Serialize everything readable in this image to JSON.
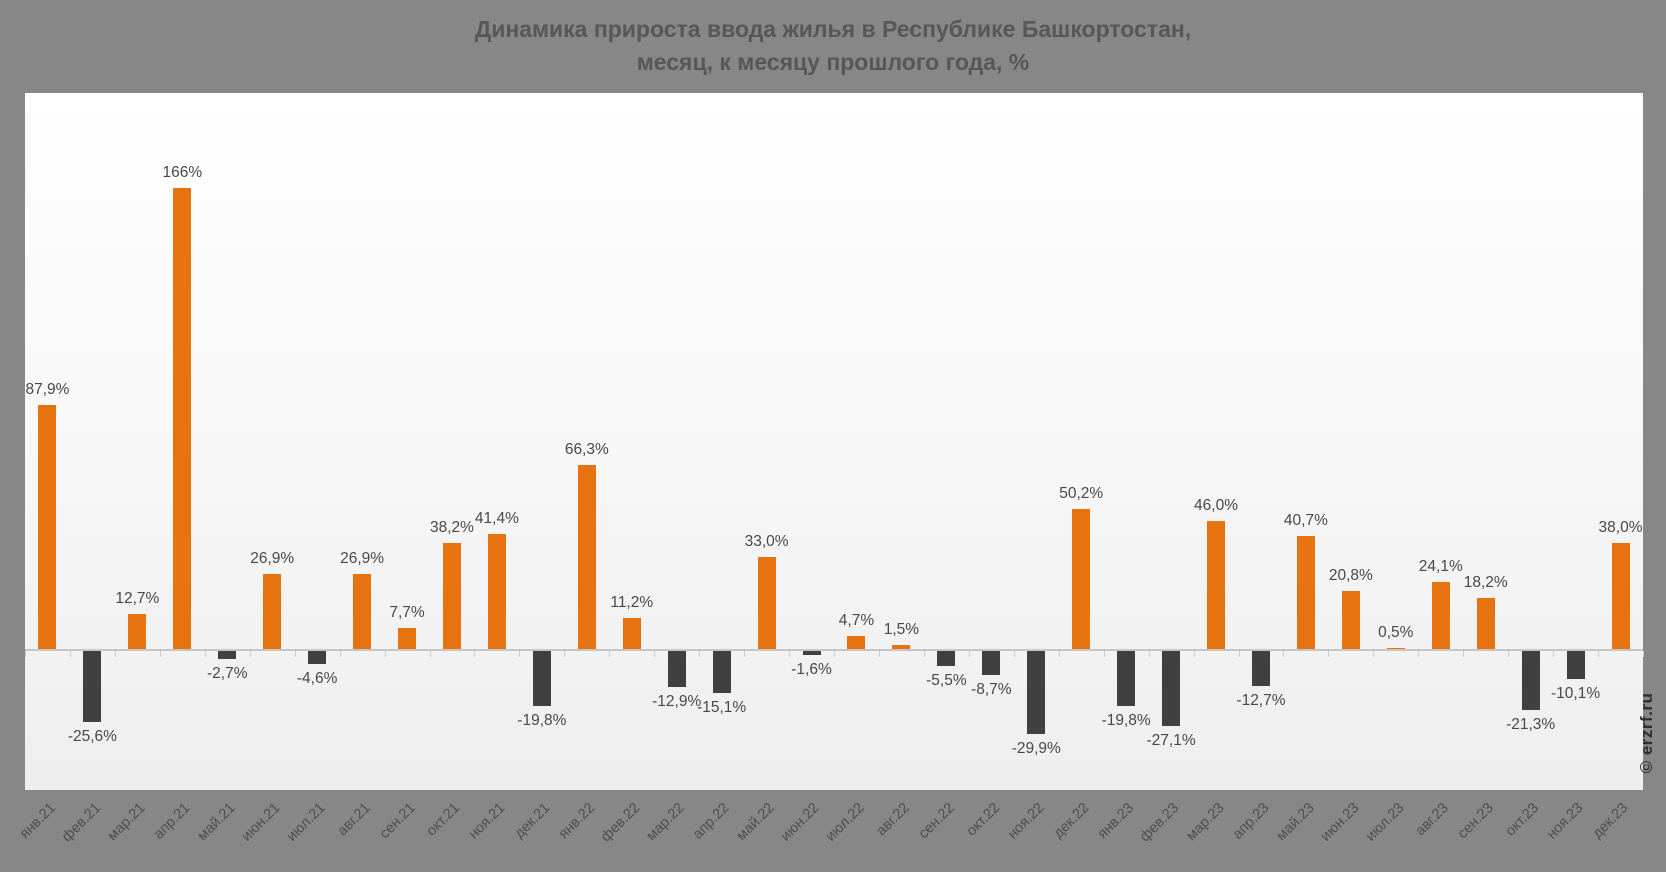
{
  "title": {
    "line1": "Динамика прироста ввода жилья в Республике Башкортостан,",
    "line2": "месяц, к месяцу прошлого года, %"
  },
  "watermark": "© erzrf.ru",
  "colors": {
    "bar_positive": "#e6730f",
    "bar_negative": "#404040",
    "page_background": "#878787",
    "axis_line": "#c5c5c5",
    "label_text": "#484848"
  },
  "chart_data": {
    "type": "bar",
    "title": "Динамика прироста ввода жилья в Республике Башкортостан, месяц, к месяцу прошлого года, %",
    "xlabel": "",
    "ylabel": "",
    "ylim": [
      -50,
      200
    ],
    "grid": false,
    "legend_position": "none",
    "categories": [
      "янв.21",
      "фев.21",
      "мар.21",
      "апр.21",
      "май.21",
      "июн.21",
      "июл.21",
      "авг.21",
      "сен.21",
      "окт.21",
      "ноя.21",
      "дек.21",
      "янв.22",
      "фев.22",
      "мар.22",
      "апр.22",
      "май.22",
      "июн.22",
      "июл.22",
      "авг.22",
      "сен.22",
      "окт.22",
      "ноя.22",
      "дек.22",
      "янв.23",
      "фев.23",
      "мар.23",
      "апр.23",
      "май.23",
      "июн.23",
      "июл.23",
      "авг.23",
      "сен.23",
      "окт.23",
      "ноя.23",
      "дек.23"
    ],
    "values": [
      87.9,
      -25.6,
      12.7,
      166,
      -2.7,
      26.9,
      -4.6,
      26.9,
      7.7,
      38.2,
      41.4,
      -19.8,
      66.3,
      11.2,
      -12.9,
      -15.1,
      33.0,
      -1.6,
      4.7,
      1.5,
      -5.5,
      -8.7,
      -29.9,
      50.2,
      -19.8,
      -27.1,
      46.0,
      -12.7,
      40.7,
      20.8,
      0.5,
      24.1,
      18.2,
      -21.3,
      -10.1,
      38.0
    ],
    "value_labels": [
      "87,9%",
      "-25,6%",
      "12,7%",
      "166%",
      "-2,7%",
      "26,9%",
      "-4,6%",
      "26,9%",
      "7,7%",
      "38,2%",
      "41,4%",
      "-19,8%",
      "66,3%",
      "11,2%",
      "-12,9%",
      "-15,1%",
      "33,0%",
      "-1,6%",
      "4,7%",
      "1,5%",
      "-5,5%",
      "-8,7%",
      "-29,9%",
      "50,2%",
      "-19,8%",
      "-27,1%",
      "46,0%",
      "-12,7%",
      "40,7%",
      "20,8%",
      "0,5%",
      "24,1%",
      "18,2%",
      "-21,3%",
      "-10,1%",
      "38,0%"
    ]
  }
}
